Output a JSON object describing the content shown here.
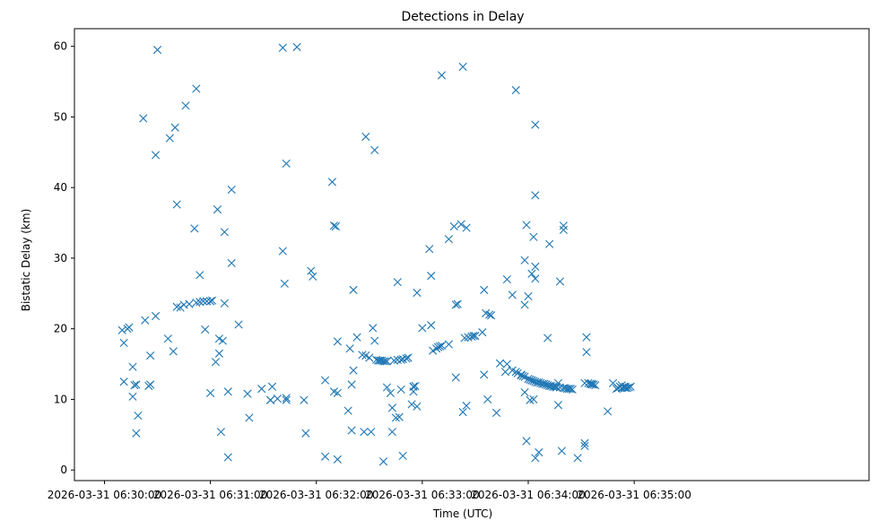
{
  "chart_data": {
    "type": "scatter",
    "title": "Detections in Delay",
    "xlabel": "Time (UTC)",
    "ylabel": "Bistatic Delay (km)",
    "x_unit": "seconds since 2026-03-31 06:30:00",
    "xlim": [
      -17,
      433
    ],
    "ylim": [
      -1.5,
      62.5
    ],
    "x_ticks": [
      {
        "value": 0,
        "label": "2026-03-31 06:30:00"
      },
      {
        "value": 60,
        "label": "2026-03-31 06:31:00"
      },
      {
        "value": 120,
        "label": "2026-03-31 06:32:00"
      },
      {
        "value": 180,
        "label": "2026-03-31 06:33:00"
      },
      {
        "value": 240,
        "label": "2026-03-31 06:34:00"
      },
      {
        "value": 300,
        "label": "2026-03-31 06:35:00"
      }
    ],
    "y_ticks": [
      0,
      10,
      20,
      30,
      40,
      50,
      60
    ],
    "marker": "x",
    "color": "#1f77b4",
    "series": [
      {
        "name": "Detections",
        "points": [
          [
            10,
            19.8
          ],
          [
            11,
            18
          ],
          [
            11,
            12.5
          ],
          [
            13,
            20
          ],
          [
            14,
            20.2
          ],
          [
            16,
            14.6
          ],
          [
            16,
            10.4
          ],
          [
            17,
            12
          ],
          [
            18,
            12.1
          ],
          [
            18,
            5.2
          ],
          [
            19,
            7.7
          ],
          [
            22,
            49.8
          ],
          [
            23,
            21.2
          ],
          [
            25,
            11.9
          ],
          [
            26,
            16.2
          ],
          [
            26,
            12.1
          ],
          [
            29,
            44.6
          ],
          [
            29,
            21.8
          ],
          [
            30,
            59.5
          ],
          [
            36,
            18.6
          ],
          [
            37,
            47
          ],
          [
            39,
            16.8
          ],
          [
            40,
            48.5
          ],
          [
            41,
            37.6
          ],
          [
            41,
            23.1
          ],
          [
            43,
            23
          ],
          [
            45,
            23.4
          ],
          [
            46,
            51.6
          ],
          [
            48,
            23.5
          ],
          [
            51,
            34.2
          ],
          [
            52,
            54
          ],
          [
            52,
            23.7
          ],
          [
            54,
            27.6
          ],
          [
            54,
            23.8
          ],
          [
            56,
            23.9
          ],
          [
            57,
            19.9
          ],
          [
            58,
            23.9
          ],
          [
            60,
            23.9
          ],
          [
            60,
            10.9
          ],
          [
            61,
            24
          ],
          [
            63,
            15.3
          ],
          [
            64,
            36.9
          ],
          [
            65,
            18.6
          ],
          [
            65,
            16.5
          ],
          [
            66,
            5.4
          ],
          [
            67,
            18.3
          ],
          [
            68,
            33.7
          ],
          [
            68,
            23.6
          ],
          [
            70,
            11.1
          ],
          [
            70,
            1.8
          ],
          [
            72,
            39.7
          ],
          [
            72,
            29.3
          ],
          [
            76,
            20.6
          ],
          [
            81,
            10.8
          ],
          [
            82,
            7.4
          ],
          [
            89,
            11.5
          ],
          [
            94,
            9.9
          ],
          [
            94,
            9.9
          ],
          [
            95,
            11.8
          ],
          [
            98,
            10.1
          ],
          [
            101,
            59.8
          ],
          [
            101,
            31
          ],
          [
            102,
            26.4
          ],
          [
            103,
            43.4
          ],
          [
            103,
            10.2
          ],
          [
            103,
            9.9
          ],
          [
            109,
            59.9
          ],
          [
            113,
            9.9
          ],
          [
            114,
            5.2
          ],
          [
            117,
            28.2
          ],
          [
            118,
            27.4
          ],
          [
            125,
            12.7
          ],
          [
            125,
            1.9
          ],
          [
            129,
            40.8
          ],
          [
            130,
            34.6
          ],
          [
            130,
            11.1
          ],
          [
            131,
            34.5
          ],
          [
            132,
            18.2
          ],
          [
            132,
            10.9
          ],
          [
            132,
            1.5
          ],
          [
            138,
            8.4
          ],
          [
            139,
            17.2
          ],
          [
            140,
            12.1
          ],
          [
            140,
            5.6
          ],
          [
            141,
            14.1
          ],
          [
            141,
            25.5
          ],
          [
            143,
            18.8
          ],
          [
            146,
            16.3
          ],
          [
            147,
            5.4
          ],
          [
            148,
            16.2
          ],
          [
            148,
            47.2
          ],
          [
            150,
            15.9
          ],
          [
            151,
            5.4
          ],
          [
            152,
            20.1
          ],
          [
            153,
            18.3
          ],
          [
            153,
            45.3
          ],
          [
            154,
            15.6
          ],
          [
            155,
            15.5
          ],
          [
            156,
            15.5
          ],
          [
            157,
            15.5
          ],
          [
            158,
            15.4
          ],
          [
            158,
            1.2
          ],
          [
            159,
            15.4
          ],
          [
            160,
            15.4
          ],
          [
            160,
            11.7
          ],
          [
            162,
            10.9
          ],
          [
            163,
            8.8
          ],
          [
            163,
            5.4
          ],
          [
            164,
            15.5
          ],
          [
            165,
            7.4
          ],
          [
            166,
            26.6
          ],
          [
            166,
            15.6
          ],
          [
            167,
            7.5
          ],
          [
            168,
            15.6
          ],
          [
            168,
            11.4
          ],
          [
            169,
            15.7
          ],
          [
            169,
            2
          ],
          [
            171,
            15.8
          ],
          [
            172,
            15.9
          ],
          [
            174,
            9.3
          ],
          [
            175,
            11.8
          ],
          [
            175,
            11.8
          ],
          [
            175,
            11.1
          ],
          [
            176,
            11.9
          ],
          [
            177,
            9
          ],
          [
            177,
            25.1
          ],
          [
            180,
            20.1
          ],
          [
            184,
            31.3
          ],
          [
            185,
            20.5
          ],
          [
            185,
            27.5
          ],
          [
            186,
            16.9
          ],
          [
            188,
            17.2
          ],
          [
            189,
            17.4
          ],
          [
            190,
            17.5
          ],
          [
            191,
            17.6
          ],
          [
            191,
            55.9
          ],
          [
            195,
            17.8
          ],
          [
            195,
            32.7
          ],
          [
            198,
            34.5
          ],
          [
            199,
            13.1
          ],
          [
            199,
            23.4
          ],
          [
            200,
            23.5
          ],
          [
            202,
            34.8
          ],
          [
            203,
            57.1
          ],
          [
            203,
            8.2
          ],
          [
            204,
            18.7
          ],
          [
            205,
            9.1
          ],
          [
            205,
            34.3
          ],
          [
            206,
            18.8
          ],
          [
            208,
            18.9
          ],
          [
            209,
            19
          ],
          [
            210,
            19
          ],
          [
            214,
            19.5
          ],
          [
            215,
            13.5
          ],
          [
            215,
            25.5
          ],
          [
            216,
            22.2
          ],
          [
            217,
            10
          ],
          [
            218,
            22
          ],
          [
            219,
            21.9
          ],
          [
            222,
            8.1
          ],
          [
            224,
            15.1
          ],
          [
            227,
            13.9
          ],
          [
            228,
            15
          ],
          [
            228,
            27
          ],
          [
            231,
            24.8
          ],
          [
            231,
            14.1
          ],
          [
            233,
            53.8
          ],
          [
            233,
            13.9
          ],
          [
            234,
            13.7
          ],
          [
            236,
            13.5
          ],
          [
            236,
            13.4
          ],
          [
            237,
            13.3
          ],
          [
            238,
            29.7
          ],
          [
            238,
            23.4
          ],
          [
            238,
            13.2
          ],
          [
            238,
            11
          ],
          [
            239,
            34.7
          ],
          [
            239,
            4.1
          ],
          [
            240,
            24.6
          ],
          [
            240,
            12.9
          ],
          [
            241,
            12.8
          ],
          [
            241,
            9.9
          ],
          [
            242,
            12.7
          ],
          [
            242,
            27.8
          ],
          [
            242,
            12.7
          ],
          [
            243,
            33
          ],
          [
            243,
            10
          ],
          [
            243,
            12.6
          ],
          [
            244,
            48.9
          ],
          [
            244,
            38.9
          ],
          [
            244,
            27.1
          ],
          [
            244,
            28.8
          ],
          [
            244,
            1.7
          ],
          [
            244,
            12.5
          ],
          [
            245,
            12.4
          ],
          [
            246,
            2.5
          ],
          [
            246,
            12.4
          ],
          [
            247,
            12.3
          ],
          [
            248,
            12.2
          ],
          [
            249,
            12.2
          ],
          [
            250,
            12.1
          ],
          [
            250,
            12.1
          ],
          [
            251,
            12
          ],
          [
            251,
            18.7
          ],
          [
            252,
            11.9
          ],
          [
            252,
            32
          ],
          [
            253,
            11.9
          ],
          [
            254,
            11.8
          ],
          [
            255,
            11.8
          ],
          [
            256,
            11.8
          ],
          [
            256,
            11.7
          ],
          [
            257,
            9.2
          ],
          [
            257,
            12.3
          ],
          [
            258,
            11.7
          ],
          [
            258,
            26.7
          ],
          [
            259,
            2.7
          ],
          [
            260,
            11.6
          ],
          [
            260,
            34.6
          ],
          [
            260,
            34
          ],
          [
            261,
            11.6
          ],
          [
            262,
            11.5
          ],
          [
            263,
            11.5
          ],
          [
            264,
            11.5
          ],
          [
            265,
            11.4
          ],
          [
            268,
            1.7
          ],
          [
            272,
            3.8
          ],
          [
            272,
            3.4
          ],
          [
            272,
            12.3
          ],
          [
            273,
            18.8
          ],
          [
            273,
            16.7
          ],
          [
            274,
            12.3
          ],
          [
            275,
            12.2
          ],
          [
            276,
            12.2
          ],
          [
            276,
            12.1
          ],
          [
            277,
            12.1
          ],
          [
            278,
            12
          ],
          [
            285,
            8.3
          ],
          [
            288,
            12.3
          ],
          [
            290,
            11.5
          ],
          [
            291,
            11.6
          ],
          [
            292,
            11.8
          ],
          [
            293,
            12
          ],
          [
            293,
            11.6
          ],
          [
            294,
            11.7
          ],
          [
            295,
            11.8
          ],
          [
            295,
            11.6
          ],
          [
            296,
            11.6
          ],
          [
            297,
            11.7
          ],
          [
            298,
            11.8
          ]
        ]
      }
    ]
  }
}
